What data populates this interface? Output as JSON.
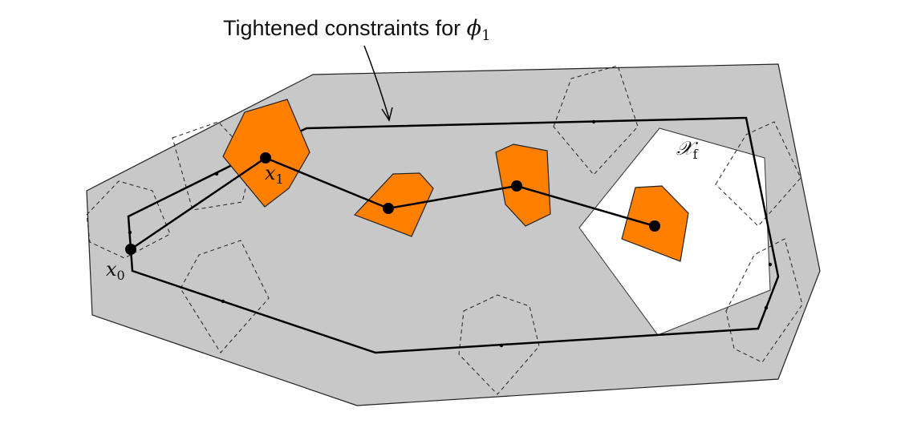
{
  "annotation": {
    "text": "Tightened constraints for ",
    "symbol": "ϕ",
    "subscript": "1"
  },
  "labels": {
    "x0": {
      "symbol": "x",
      "subscript": "0"
    },
    "x1": {
      "symbol": "x",
      "subscript": "1"
    },
    "xf": {
      "symbol": "𝒳",
      "subscript": "f"
    }
  },
  "colors": {
    "constraint_set": "#c8c8c8",
    "obstacle": "#ff7f00",
    "terminal_set": "#ffffff",
    "trajectory": "#000000",
    "outline": "#222222"
  }
}
